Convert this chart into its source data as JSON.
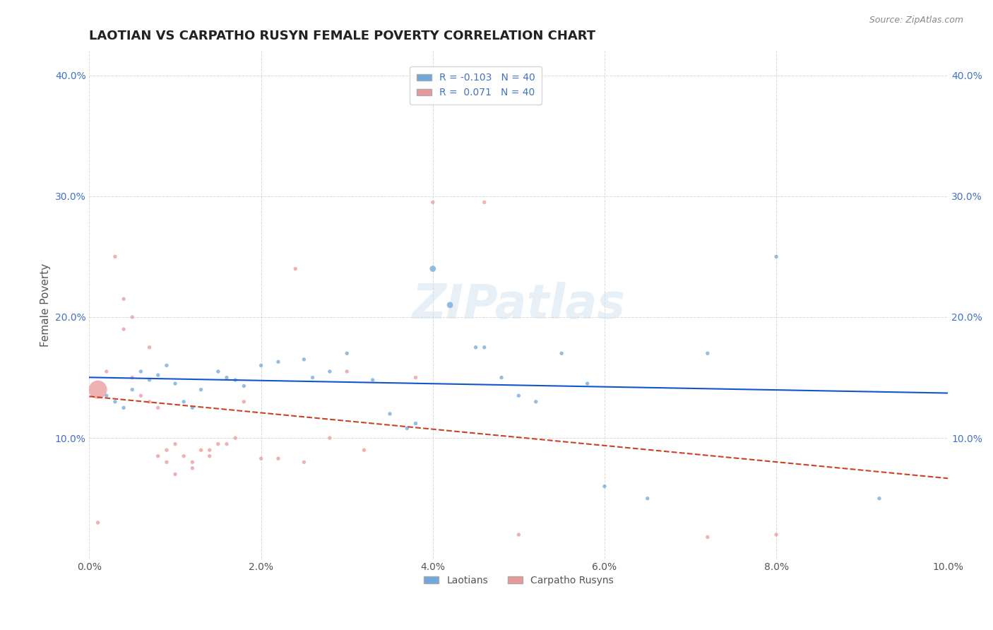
{
  "title": "LAOTIAN VS CARPATHO RUSYN FEMALE POVERTY CORRELATION CHART",
  "source": "Source: ZipAtlas.com",
  "xlabel_bottom": "",
  "ylabel": "Female Poverty",
  "watermark": "ZIPatlas",
  "xlim": [
    0.0,
    0.1
  ],
  "ylim": [
    0.0,
    0.42
  ],
  "xtick_labels": [
    "0.0%",
    "2.0%",
    "4.0%",
    "6.0%",
    "8.0%",
    "10.0%"
  ],
  "xtick_vals": [
    0.0,
    0.02,
    0.04,
    0.06,
    0.08,
    0.1
  ],
  "ytick_labels": [
    "10.0%",
    "20.0%",
    "30.0%",
    "40.0%"
  ],
  "ytick_vals": [
    0.1,
    0.2,
    0.3,
    0.4
  ],
  "laotian_color": "#6fa8dc",
  "carpatho_color": "#ea9999",
  "laotian_line_color": "#1155cc",
  "carpatho_line_color": "#cc4125",
  "legend_label_1": "R = -0.103   N = 40",
  "legend_label_2": "R =  0.071   N = 40",
  "legend_labels_bottom": [
    "Laotians",
    "Carpatho Rusyns"
  ],
  "R_laotian": -0.103,
  "R_carpatho": 0.071,
  "laotian_points": [
    [
      0.002,
      0.135
    ],
    [
      0.003,
      0.13
    ],
    [
      0.004,
      0.125
    ],
    [
      0.005,
      0.14
    ],
    [
      0.006,
      0.155
    ],
    [
      0.007,
      0.148
    ],
    [
      0.008,
      0.152
    ],
    [
      0.009,
      0.16
    ],
    [
      0.01,
      0.145
    ],
    [
      0.011,
      0.13
    ],
    [
      0.012,
      0.125
    ],
    [
      0.013,
      0.14
    ],
    [
      0.015,
      0.155
    ],
    [
      0.016,
      0.15
    ],
    [
      0.017,
      0.148
    ],
    [
      0.018,
      0.143
    ],
    [
      0.02,
      0.16
    ],
    [
      0.022,
      0.163
    ],
    [
      0.025,
      0.165
    ],
    [
      0.026,
      0.15
    ],
    [
      0.028,
      0.155
    ],
    [
      0.03,
      0.17
    ],
    [
      0.033,
      0.148
    ],
    [
      0.035,
      0.12
    ],
    [
      0.037,
      0.108
    ],
    [
      0.038,
      0.112
    ],
    [
      0.04,
      0.24
    ],
    [
      0.042,
      0.21
    ],
    [
      0.045,
      0.175
    ],
    [
      0.046,
      0.175
    ],
    [
      0.048,
      0.15
    ],
    [
      0.05,
      0.135
    ],
    [
      0.052,
      0.13
    ],
    [
      0.055,
      0.17
    ],
    [
      0.058,
      0.145
    ],
    [
      0.06,
      0.06
    ],
    [
      0.065,
      0.05
    ],
    [
      0.072,
      0.17
    ],
    [
      0.08,
      0.25
    ],
    [
      0.092,
      0.05
    ]
  ],
  "laotian_sizes": [
    15,
    15,
    15,
    15,
    15,
    15,
    15,
    15,
    15,
    15,
    15,
    15,
    15,
    15,
    15,
    15,
    15,
    15,
    15,
    15,
    15,
    15,
    15,
    15,
    15,
    15,
    40,
    40,
    15,
    15,
    15,
    15,
    15,
    15,
    15,
    15,
    15,
    15,
    15,
    15
  ],
  "carpatho_points": [
    [
      0.001,
      0.14
    ],
    [
      0.002,
      0.155
    ],
    [
      0.003,
      0.25
    ],
    [
      0.004,
      0.215
    ],
    [
      0.004,
      0.19
    ],
    [
      0.005,
      0.2
    ],
    [
      0.005,
      0.15
    ],
    [
      0.006,
      0.135
    ],
    [
      0.007,
      0.175
    ],
    [
      0.007,
      0.13
    ],
    [
      0.008,
      0.125
    ],
    [
      0.008,
      0.085
    ],
    [
      0.009,
      0.09
    ],
    [
      0.009,
      0.08
    ],
    [
      0.01,
      0.095
    ],
    [
      0.01,
      0.07
    ],
    [
      0.011,
      0.085
    ],
    [
      0.012,
      0.08
    ],
    [
      0.012,
      0.075
    ],
    [
      0.013,
      0.09
    ],
    [
      0.014,
      0.09
    ],
    [
      0.014,
      0.085
    ],
    [
      0.015,
      0.095
    ],
    [
      0.016,
      0.095
    ],
    [
      0.017,
      0.1
    ],
    [
      0.018,
      0.13
    ],
    [
      0.02,
      0.083
    ],
    [
      0.022,
      0.083
    ],
    [
      0.024,
      0.24
    ],
    [
      0.025,
      0.08
    ],
    [
      0.028,
      0.1
    ],
    [
      0.03,
      0.155
    ],
    [
      0.032,
      0.09
    ],
    [
      0.038,
      0.15
    ],
    [
      0.04,
      0.295
    ],
    [
      0.046,
      0.295
    ],
    [
      0.05,
      0.02
    ],
    [
      0.072,
      0.018
    ],
    [
      0.08,
      0.02
    ],
    [
      0.001,
      0.03
    ]
  ],
  "carpatho_sizes": [
    350,
    15,
    15,
    15,
    15,
    15,
    15,
    15,
    15,
    15,
    15,
    15,
    15,
    15,
    15,
    15,
    15,
    15,
    15,
    15,
    15,
    15,
    15,
    15,
    15,
    15,
    15,
    15,
    15,
    15,
    15,
    15,
    15,
    15,
    15,
    15,
    15,
    15,
    15,
    15
  ],
  "background_color": "#ffffff",
  "grid_color": "#cccccc"
}
